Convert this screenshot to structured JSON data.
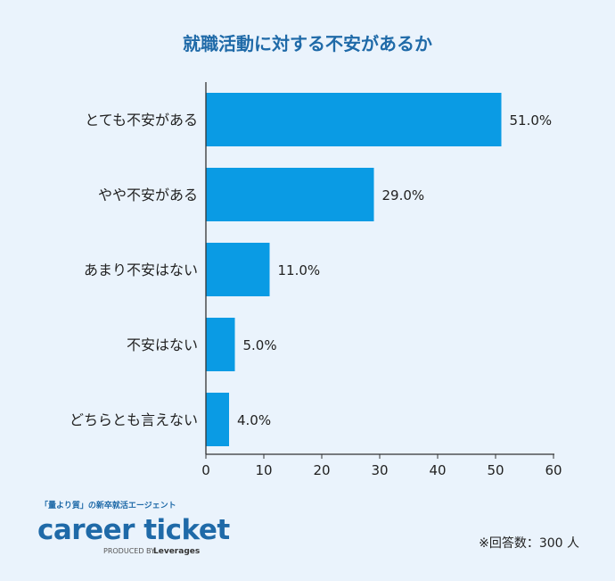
{
  "chart_data": {
    "type": "bar",
    "orientation": "horizontal",
    "title": "就職活動に対する不安があるか",
    "categories": [
      "とても不安がある",
      "やや不安がある",
      "あまり不安はない",
      "不安はない",
      "どちらとも言えない"
    ],
    "values": [
      51.0,
      29.0,
      11.0,
      5.0,
      4.0
    ],
    "value_labels": [
      "51.0%",
      "29.0%",
      "11.0%",
      "5.0%",
      "4.0%"
    ],
    "xlim": [
      0,
      60
    ],
    "xticks": [
      "0",
      "10",
      "20",
      "30",
      "40",
      "50",
      "60"
    ],
    "grid": false,
    "bar_color": "#0a9be4"
  },
  "footnote": "※回答数：300 人",
  "logo": {
    "tagline": "「量より質」の新卒就活エージェント",
    "name": "career ticket",
    "produced_by": "PRODUCED BY",
    "brand": "Leverages"
  }
}
